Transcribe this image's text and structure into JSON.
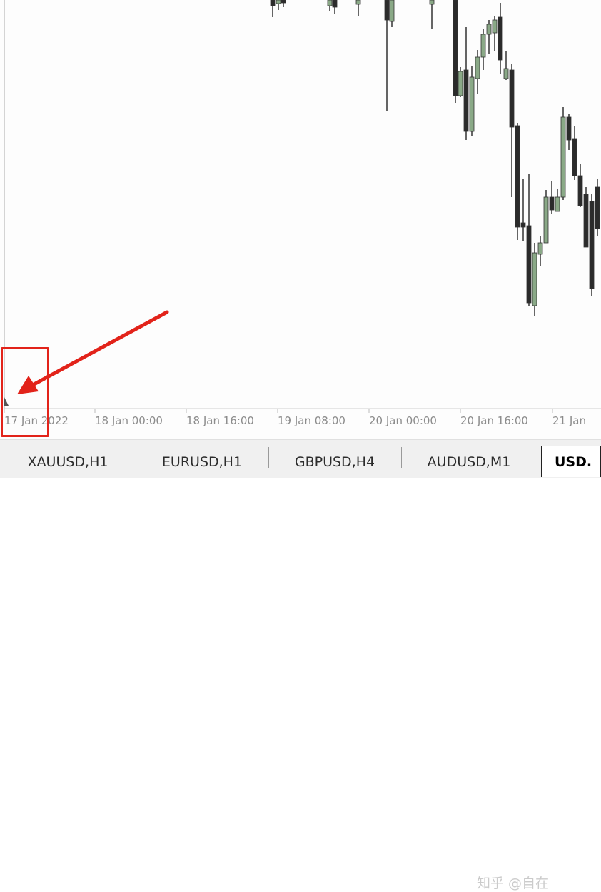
{
  "time_axis": {
    "labels": [
      "17 Jan 2022",
      "18 Jan 00:00",
      "18 Jan 16:00",
      "19 Jan 08:00",
      "20 Jan 00:00",
      "20 Jan 16:00",
      "21 Jan"
    ]
  },
  "tabs": [
    {
      "label": "XAUUSD,H1"
    },
    {
      "label": "EURUSD,H1"
    },
    {
      "label": "GBPUSD,H4"
    },
    {
      "label": "AUDUSD,M1"
    },
    {
      "label": "USD."
    }
  ],
  "watermark": "知乎 @自在",
  "colors": {
    "bull_candle": "#8aa987",
    "bear_candle": "#2b2b2b",
    "annotation": "#e2231a",
    "axis_text": "#8c8c8c"
  }
}
